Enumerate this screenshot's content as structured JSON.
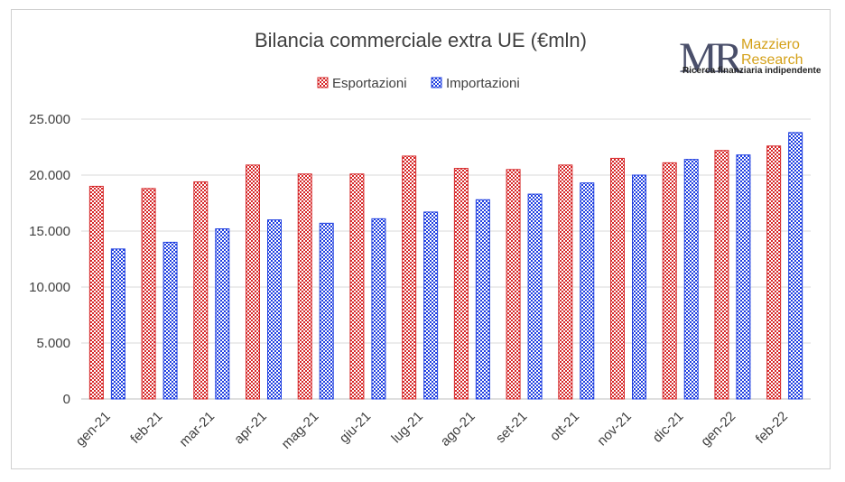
{
  "chart_data": {
    "type": "bar",
    "title": "Bilancia commerciale extra UE (€mln)",
    "categories": [
      "gen-21",
      "feb-21",
      "mar-21",
      "apr-21",
      "mag-21",
      "giu-21",
      "lug-21",
      "ago-21",
      "set-21",
      "ott-21",
      "nov-21",
      "dic-21",
      "gen-22",
      "feb-22"
    ],
    "series": [
      {
        "name": "Esportazioni",
        "color": "#d62728",
        "values": [
          19000,
          18800,
          19400,
          20900,
          20100,
          20100,
          21700,
          20600,
          20500,
          20900,
          21500,
          21100,
          22200,
          22600
        ]
      },
      {
        "name": "Importazioni",
        "color": "#1f3fe0",
        "values": [
          13400,
          14000,
          15200,
          16000,
          15700,
          16100,
          16700,
          17800,
          18300,
          19300,
          20000,
          21400,
          21800,
          23800
        ]
      }
    ],
    "ylim": [
      0,
      25000
    ],
    "yticks": [
      "0",
      "5.000",
      "10.000",
      "15.000",
      "20.000",
      "25.000"
    ],
    "ytick_values": [
      0,
      5000,
      10000,
      15000,
      20000,
      25000
    ],
    "grid": true,
    "legend_position": "top-center"
  },
  "logo": {
    "letters": "MR",
    "name_line1": "Mazziero",
    "name_line2": "Research",
    "tagline": "Ricerca finanziaria indipendente",
    "accent_color": "#d4a017",
    "mark_color": "#4a4f6a"
  }
}
